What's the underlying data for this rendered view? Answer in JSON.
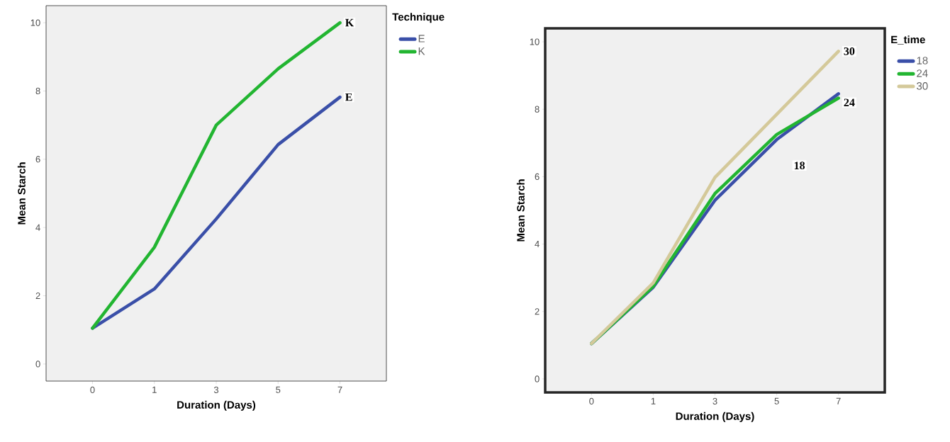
{
  "chart_data": [
    {
      "type": "line",
      "xlabel": "Duration  (Days)",
      "ylabel": "Mean Starch",
      "legend_title": "Technique",
      "legend": "right",
      "grid": false,
      "categories": [
        "0",
        "1",
        "3",
        "5",
        "7"
      ],
      "ylim": [
        -0.5,
        10.5
      ],
      "yticks": [
        0,
        2,
        4,
        6,
        8,
        10
      ],
      "series": [
        {
          "name": "E",
          "color": "#3a4fa8",
          "values": [
            1.05,
            2.2,
            4.25,
            6.43,
            7.82
          ]
        },
        {
          "name": "K",
          "color": "#22b531",
          "values": [
            1.05,
            3.42,
            7.0,
            8.65,
            10.0
          ]
        }
      ],
      "annotations": [
        {
          "text": "K",
          "x": "7",
          "y": 10.0
        },
        {
          "text": "E",
          "x": "7",
          "y": 7.82
        }
      ]
    },
    {
      "type": "line",
      "xlabel": "Duration (Days)",
      "ylabel": "Mean Starch",
      "legend_title": "E_time",
      "legend": "right",
      "grid": false,
      "categories": [
        "0",
        "1",
        "3",
        "5",
        "7"
      ],
      "ylim": [
        -0.4,
        10.4
      ],
      "yticks": [
        0,
        2,
        4,
        6,
        8,
        10
      ],
      "series": [
        {
          "name": "18",
          "color": "#3a4fa8",
          "values": [
            1.05,
            2.72,
            5.3,
            7.1,
            8.46
          ]
        },
        {
          "name": "24",
          "color": "#22b531",
          "values": [
            1.05,
            2.75,
            5.5,
            7.25,
            8.33
          ]
        },
        {
          "name": "30",
          "color": "#d4c99a",
          "values": [
            1.05,
            2.85,
            5.98,
            7.85,
            9.72
          ]
        }
      ],
      "annotations": [
        {
          "text": "30",
          "x": "7",
          "y": 9.72
        },
        {
          "text": "24",
          "x": "7",
          "y": 8.2
        },
        {
          "text": "18",
          "y": 6.33
        }
      ]
    }
  ]
}
